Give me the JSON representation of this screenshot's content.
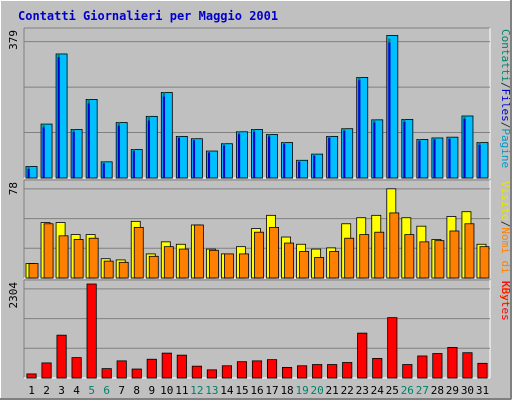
{
  "chart_data": {
    "type": "bar",
    "title": "Contatti Giornalieri per Maggio 2001",
    "categories": [
      "1",
      "2",
      "3",
      "4",
      "5",
      "6",
      "7",
      "8",
      "9",
      "10",
      "11",
      "12",
      "13",
      "14",
      "15",
      "16",
      "17",
      "18",
      "19",
      "20",
      "21",
      "22",
      "23",
      "24",
      "25",
      "26",
      "27",
      "28",
      "29",
      "30",
      "31"
    ],
    "weekend_days": [
      "5",
      "6",
      "12",
      "13",
      "19",
      "20",
      "26",
      "27"
    ],
    "panels": [
      {
        "id": "top",
        "max_label": "379",
        "ymax": 379,
        "right_label_parts": [
          {
            "text": "Contatti",
            "color": "#00806a"
          },
          {
            "text": "/",
            "color": "#333333"
          },
          {
            "text": "Files",
            "color": "#0000cc"
          },
          {
            "text": "/",
            "color": "#333333"
          },
          {
            "text": "Pagine",
            "color": "#0099cc"
          }
        ],
        "series": [
          {
            "name": "Contatti",
            "color": "#00806a",
            "values": [
              30,
              140,
              322,
              126,
              204,
              42,
              144,
              74,
              160,
              222,
              108,
              102,
              70,
              89,
              120,
              126,
              113,
              92,
              46,
              62,
              108,
              128,
              261,
              151,
              362,
              152,
              100,
              104,
              106,
              161,
              92
            ]
          },
          {
            "name": "Files",
            "color": "#0000cc",
            "values": [
              24,
              132,
              314,
              120,
              194,
              38,
              136,
              70,
              150,
              212,
              104,
              98,
              66,
              84,
              114,
              120,
              108,
              88,
              42,
              58,
              104,
              122,
              254,
              144,
              352,
              146,
              96,
              100,
              102,
              154,
              86
            ]
          },
          {
            "name": "Pagine",
            "color": "#00bfff",
            "values": [
              30,
              140,
              322,
              126,
              204,
              42,
              144,
              74,
              160,
              222,
              108,
              102,
              70,
              89,
              120,
              126,
              113,
              92,
              46,
              62,
              108,
              128,
              261,
              151,
              370,
              152,
              100,
              104,
              106,
              161,
              92
            ]
          }
        ]
      },
      {
        "id": "middle",
        "max_label": "78",
        "ymax": 78,
        "right_label_parts": [
          {
            "text": "Visite",
            "color": "#e6e600"
          },
          {
            "text": "/",
            "color": "#333333"
          },
          {
            "text": "Nomi di Host",
            "color": "#ff8000"
          }
        ],
        "series": [
          {
            "name": "Visite",
            "color": "#ffff00",
            "values": [
              12,
              46,
              46,
              36,
              36,
              16,
              15,
              47,
              20,
              30,
              28,
              44,
              24,
              20,
              26,
              41,
              52,
              34,
              28,
              24,
              25,
              45,
              50,
              52,
              74,
              50,
              43,
              32,
              51,
              55,
              28
            ]
          },
          {
            "name": "Nomi di Host",
            "color": "#ff8000",
            "values": [
              12,
              45,
              35,
              32,
              33,
              14,
              13,
              42,
              18,
              26,
              24,
              44,
              23,
              20,
              20,
              38,
              42,
              29,
              22,
              17,
              22,
              33,
              36,
              38,
              54,
              36,
              30,
              31,
              39,
              45,
              26
            ]
          }
        ]
      },
      {
        "id": "bottom",
        "max_label": "2304",
        "ymax": 2304,
        "right_label_parts": [
          {
            "text": "KBytes",
            "color": "#ff0000"
          }
        ],
        "series": [
          {
            "name": "KBytes",
            "color": "#ff0000",
            "values": [
              100,
              370,
              1050,
              500,
              2304,
              230,
              420,
              220,
              460,
              610,
              560,
              290,
              200,
              300,
              400,
              420,
              450,
              260,
              300,
              330,
              330,
              380,
              1100,
              480,
              1480,
              330,
              540,
              600,
              750,
              620,
              360
            ]
          }
        ]
      }
    ]
  }
}
